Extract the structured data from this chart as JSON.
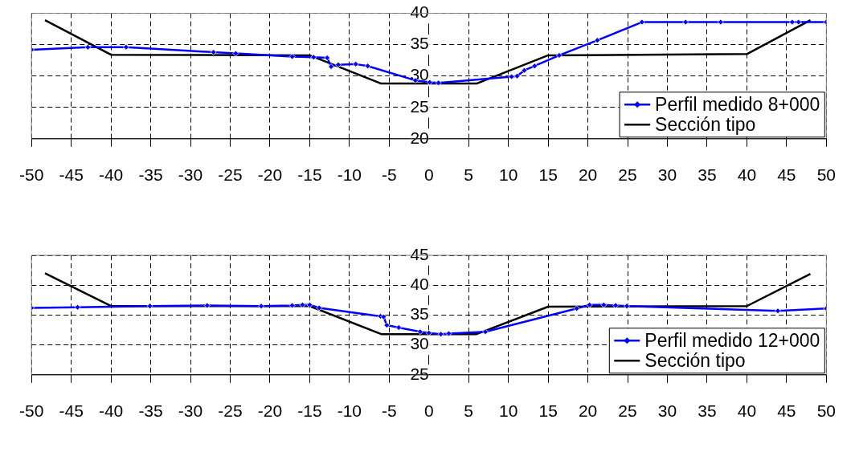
{
  "chart_data": [
    {
      "type": "line",
      "xlim": [
        -50,
        50
      ],
      "xticks": [
        -50,
        -45,
        -40,
        -35,
        -30,
        -25,
        -20,
        -15,
        -10,
        -5,
        0,
        5,
        10,
        15,
        20,
        25,
        30,
        35,
        40,
        45,
        50
      ],
      "ylim": [
        20,
        40
      ],
      "yticks": [
        20,
        25,
        30,
        35,
        40
      ],
      "grid": true,
      "legend": "bottom right",
      "line_style": "solid",
      "series": [
        {
          "name": "Perfil medido 8+000",
          "color": "#0000ff",
          "marker": "diamond",
          "x": [
            -50,
            -42.9,
            -38.1,
            -27.1,
            -24.3,
            -17.2,
            -14.5,
            -12.8,
            -12.3,
            -11.4,
            -9.2,
            -7.7,
            -1.7,
            0.1,
            1.2,
            10.4,
            11.1,
            12.0,
            13.3,
            16.4,
            21.2,
            26.8,
            32.3,
            36.7,
            45.7,
            46.5,
            50
          ],
          "values": [
            34.2,
            34.6,
            34.6,
            33.8,
            33.6,
            33.1,
            33.0,
            32.9,
            31.5,
            31.8,
            31.9,
            31.6,
            29.3,
            29.0,
            28.9,
            29.9,
            30.0,
            30.9,
            31.6,
            33.3,
            35.7,
            38.6,
            38.6,
            38.6,
            38.6,
            38.6,
            38.6
          ]
        },
        {
          "name": "Sección tipo",
          "color": "#000000",
          "marker": "none",
          "x": [
            -48.3,
            -40,
            -15,
            -6,
            6,
            15,
            40,
            48
          ],
          "values": [
            38.9,
            33.4,
            33.3,
            28.8,
            28.8,
            33.3,
            33.5,
            38.9
          ]
        }
      ]
    },
    {
      "type": "line",
      "xlim": [
        -50,
        50
      ],
      "xticks": [
        -50,
        -45,
        -40,
        -35,
        -30,
        -25,
        -20,
        -15,
        -10,
        -5,
        0,
        5,
        10,
        15,
        20,
        25,
        30,
        35,
        40,
        45,
        50
      ],
      "ylim": [
        25,
        45
      ],
      "yticks": [
        25,
        30,
        35,
        40,
        45
      ],
      "grid": true,
      "legend": "bottom right",
      "line_style": "solid",
      "series": [
        {
          "name": "Perfil medido 12+000",
          "color": "#0000ff",
          "marker": "diamond",
          "x": [
            -50,
            -44.2,
            -35.1,
            -27.9,
            -21.1,
            -17.2,
            -15.9,
            -15.0,
            -13.8,
            -6.1,
            -5.7,
            -5.3,
            -3.8,
            -1.1,
            0,
            1.5,
            2.5,
            7.1,
            18.6,
            20.2,
            22.0,
            23.5,
            24.9,
            43.9,
            50
          ],
          "values": [
            36.2,
            36.3,
            36.5,
            36.6,
            36.5,
            36.6,
            36.7,
            36.7,
            36.2,
            34.8,
            34.7,
            33.3,
            32.9,
            32.2,
            32.0,
            31.8,
            31.9,
            32.2,
            36.1,
            36.7,
            36.7,
            36.6,
            36.5,
            35.7,
            36.1
          ]
        },
        {
          "name": "Sección tipo",
          "color": "#000000",
          "marker": "none",
          "x": [
            -48.3,
            -40,
            -15,
            -6,
            6,
            15,
            40,
            48
          ],
          "values": [
            42.0,
            36.5,
            36.5,
            31.8,
            31.8,
            36.4,
            36.5,
            41.9
          ]
        }
      ]
    }
  ]
}
